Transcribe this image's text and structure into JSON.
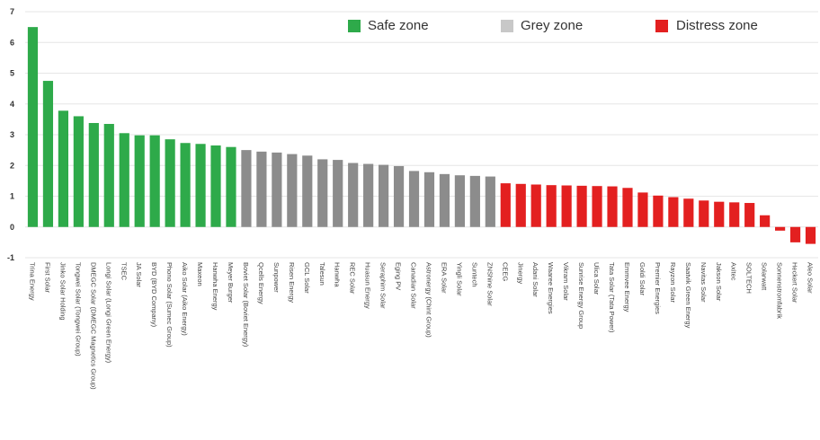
{
  "chart_data": {
    "type": "bar",
    "title": "",
    "xlabel": "",
    "ylabel": "",
    "ylim": [
      -1,
      7
    ],
    "yticks": [
      -1,
      0,
      1,
      2,
      3,
      4,
      5,
      6,
      7
    ],
    "grid": true,
    "legend": {
      "placement": "top-right",
      "entries": [
        {
          "label": "Safe zone",
          "color": "#2eaa4a"
        },
        {
          "label": "Grey zone",
          "color": "#c8c8c8"
        },
        {
          "label": "Distress zone",
          "color": "#e32020"
        }
      ]
    },
    "zone_colors": {
      "safe": "#2eaa4a",
      "grey": "#8c8c8c",
      "distress": "#e32020"
    },
    "bars": [
      {
        "label": "Trina Energy",
        "value": 6.5,
        "zone": "safe"
      },
      {
        "label": "First Solar",
        "value": 4.75,
        "zone": "safe"
      },
      {
        "label": "Jinko Solar Holding",
        "value": 3.78,
        "zone": "safe"
      },
      {
        "label": "Tongwei Solar (Tongwei Group)",
        "value": 3.6,
        "zone": "safe"
      },
      {
        "label": "DMEGC Solar (DMEGC Magnetics Group)",
        "value": 3.38,
        "zone": "safe"
      },
      {
        "label": "Longi Solar (Longi Green Energy)",
        "value": 3.35,
        "zone": "safe"
      },
      {
        "label": "TSEC",
        "value": 3.05,
        "zone": "safe"
      },
      {
        "label": "JA Solar",
        "value": 2.98,
        "zone": "safe"
      },
      {
        "label": "BYD (BYD Company)",
        "value": 2.98,
        "zone": "safe"
      },
      {
        "label": "Phono Solar (Sumec Group)",
        "value": 2.85,
        "zone": "safe"
      },
      {
        "label": "Aiko Solar (Aiko Energy)",
        "value": 2.73,
        "zone": "safe"
      },
      {
        "label": "Maxeon",
        "value": 2.7,
        "zone": "safe"
      },
      {
        "label": "Hanwha Energy",
        "value": 2.65,
        "zone": "safe"
      },
      {
        "label": "Meyer Burger",
        "value": 2.6,
        "zone": "safe"
      },
      {
        "label": "Boviet Solar (Boviet Energy)",
        "value": 2.5,
        "zone": "grey"
      },
      {
        "label": "Qcells Energy",
        "value": 2.45,
        "zone": "grey"
      },
      {
        "label": "Sunpower",
        "value": 2.42,
        "zone": "grey"
      },
      {
        "label": "Risen Energy",
        "value": 2.37,
        "zone": "grey"
      },
      {
        "label": "GCL Solar",
        "value": 2.32,
        "zone": "grey"
      },
      {
        "label": "Talesun",
        "value": 2.2,
        "zone": "grey"
      },
      {
        "label": "Hanwha",
        "value": 2.18,
        "zone": "grey"
      },
      {
        "label": "REC Solar",
        "value": 2.08,
        "zone": "grey"
      },
      {
        "label": "Huasun Energy",
        "value": 2.05,
        "zone": "grey"
      },
      {
        "label": "Seraphim Solar",
        "value": 2.02,
        "zone": "grey"
      },
      {
        "label": "Eging PV",
        "value": 1.98,
        "zone": "grey"
      },
      {
        "label": "Canadian Solar",
        "value": 1.82,
        "zone": "grey"
      },
      {
        "label": "Astronergy (Chint Group)",
        "value": 1.78,
        "zone": "grey"
      },
      {
        "label": "ERA Solar",
        "value": 1.72,
        "zone": "grey"
      },
      {
        "label": "Yingli Solar",
        "value": 1.68,
        "zone": "grey"
      },
      {
        "label": "Suntech",
        "value": 1.66,
        "zone": "grey"
      },
      {
        "label": "ZNShine Solar",
        "value": 1.64,
        "zone": "grey"
      },
      {
        "label": "CEEG",
        "value": 1.42,
        "zone": "distress"
      },
      {
        "label": "Jinergy",
        "value": 1.4,
        "zone": "distress"
      },
      {
        "label": "Adani Solar",
        "value": 1.38,
        "zone": "distress"
      },
      {
        "label": "Waaree Energies",
        "value": 1.36,
        "zone": "distress"
      },
      {
        "label": "Vikram Solar",
        "value": 1.35,
        "zone": "distress"
      },
      {
        "label": "Sunrise Energy Group",
        "value": 1.34,
        "zone": "distress"
      },
      {
        "label": "Ulica Solar",
        "value": 1.33,
        "zone": "distress"
      },
      {
        "label": "Tata Solar (Tata Power)",
        "value": 1.32,
        "zone": "distress"
      },
      {
        "label": "Emmvee Energy",
        "value": 1.27,
        "zone": "distress"
      },
      {
        "label": "Goldi Solar",
        "value": 1.12,
        "zone": "distress"
      },
      {
        "label": "Premier Energies",
        "value": 1.02,
        "zone": "distress"
      },
      {
        "label": "Rayzon Solar",
        "value": 0.97,
        "zone": "distress"
      },
      {
        "label": "Saatvik Green Energy",
        "value": 0.92,
        "zone": "distress"
      },
      {
        "label": "Navitas Solar",
        "value": 0.86,
        "zone": "distress"
      },
      {
        "label": "Jakson Solar",
        "value": 0.82,
        "zone": "distress"
      },
      {
        "label": "Axitec",
        "value": 0.8,
        "zone": "distress"
      },
      {
        "label": "SOLTECH",
        "value": 0.78,
        "zone": "distress"
      },
      {
        "label": "Solarwatt",
        "value": 0.38,
        "zone": "distress"
      },
      {
        "label": "Sonnenstromfabrik",
        "value": -0.12,
        "zone": "distress"
      },
      {
        "label": "Heckert Solar",
        "value": -0.5,
        "zone": "distress"
      },
      {
        "label": "Aleo Solar",
        "value": -0.55,
        "zone": "distress"
      }
    ]
  }
}
